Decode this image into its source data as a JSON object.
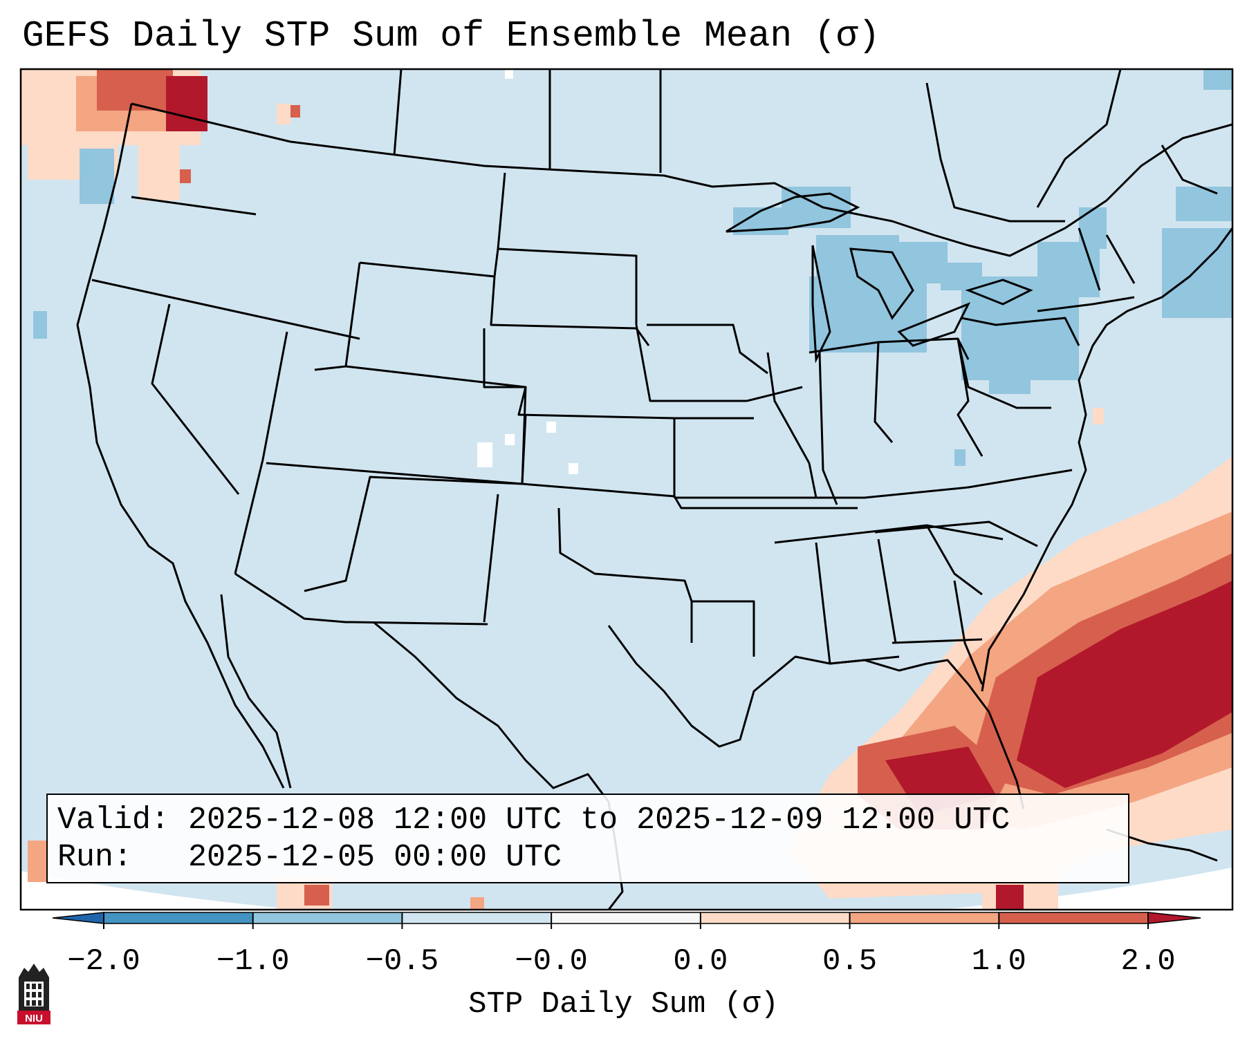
{
  "title": "GEFS Daily STP Sum of Ensemble Mean (σ)",
  "info": {
    "valid_label": "Valid:",
    "valid_value": "2025-12-08 12:00 UTC to 2025-12-09 12:00 UTC",
    "run_label": "Run:",
    "run_value": "2025-12-05 00:00 UTC"
  },
  "colorbar": {
    "label": "STP Daily Sum (σ)",
    "ticks": [
      "−2.0",
      "−1.0",
      "−0.5",
      "−0.0",
      "0.0",
      "0.5",
      "1.0",
      "2.0"
    ],
    "bins": [
      {
        "from": -2.0,
        "to": -1.0,
        "color": "#4393c3"
      },
      {
        "from": -1.0,
        "to": -0.5,
        "color": "#92c5de"
      },
      {
        "from": -0.5,
        "to": -0.0,
        "color": "#d1e5f0"
      },
      {
        "from": -0.0,
        "to": 0.0,
        "color": "#f7f7f7"
      },
      {
        "from": 0.0,
        "to": 0.5,
        "color": "#fddbc7"
      },
      {
        "from": 0.5,
        "to": 1.0,
        "color": "#f4a582"
      },
      {
        "from": 1.0,
        "to": 2.0,
        "color": "#d6604d"
      }
    ],
    "under_color": "#2166ac",
    "over_color": "#b2182b"
  },
  "map": {
    "background_color": "#d1e5f0",
    "outside_color": "#ffffff",
    "negative_anomaly_regions": [
      "Great Lakes",
      "Pennsylvania",
      "New York",
      "New England",
      "Pacific Northwest offshore"
    ],
    "positive_anomaly_regions": [
      "Washington",
      "Florida",
      "Gulf of Mexico",
      "western Atlantic"
    ]
  },
  "logo": {
    "text": "NIU"
  }
}
